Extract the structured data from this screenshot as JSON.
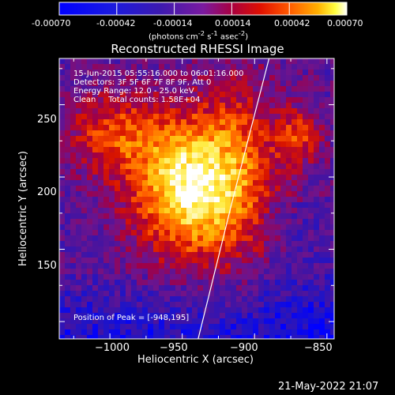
{
  "window": {
    "background": "#000000",
    "footer_date": "21-May-2022 21:07"
  },
  "colorbar": {
    "ticks": [
      "-0.00070",
      "-0.00042",
      "-0.00014",
      "0.00014",
      "0.00042",
      "0.00070"
    ],
    "units_html": "(photons cm<sup>-2</sup> s<sup>-1</sup> asec<sup>-2</sup>)"
  },
  "info_lines": [
    "15-Jun-2015 05:55:16.000 to 06:01:16.000",
    "Detectors: 3F 5F 6F 7F 8F 9F, Att 0",
    "Energy Range: 12.0 - 25.0 keV",
    "Clean     Total counts: 1.58E+04"
  ],
  "peak_label": "Position of Peak = [-948,195]",
  "chart_data": {
    "type": "heatmap",
    "title": "Reconstructed RHESSI Image",
    "xlabel": "Heliocentric X (arcsec)",
    "ylabel": "Heliocentric Y (arcsec)",
    "xlim": [
      -1035,
      -845
    ],
    "ylim": [
      88,
      282
    ],
    "xticks": [
      -1000,
      -950,
      -900,
      -850
    ],
    "xtick_labels": [
      "−1000",
      "−950",
      "−900",
      "−850"
    ],
    "yticks": [
      150,
      200,
      250
    ],
    "ytick_labels": [
      "150",
      "200",
      "250"
    ],
    "colormap": "RHESSI thermal (blue-purple-red-yellow-white)",
    "value_range": [
      -0.0007,
      0.0007
    ],
    "limb_line": [
      [
        -939,
        88
      ],
      [
        -915,
        185
      ],
      [
        -890,
        282
      ]
    ],
    "peak": [
      -948,
      195
    ],
    "grid": false
  }
}
